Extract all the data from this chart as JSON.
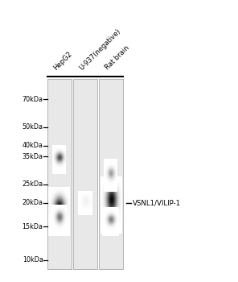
{
  "background_color": "#ffffff",
  "fig_width": 2.96,
  "fig_height": 3.5,
  "dpi": 100,
  "lane_labels": [
    "HepG2",
    "U-937(negative)",
    "Rat brain"
  ],
  "mw_labels": [
    "70kDa",
    "50kDa",
    "40kDa",
    "35kDa",
    "25kDa",
    "20kDa",
    "15kDa",
    "10kDa"
  ],
  "mw_positions": [
    70,
    50,
    40,
    35,
    25,
    20,
    15,
    10
  ],
  "annotation_label": "VSNL1/VILIP-1",
  "annotation_mw": 20,
  "gel_color": "#f0f0f0",
  "lane_color": "#e8e8e8"
}
